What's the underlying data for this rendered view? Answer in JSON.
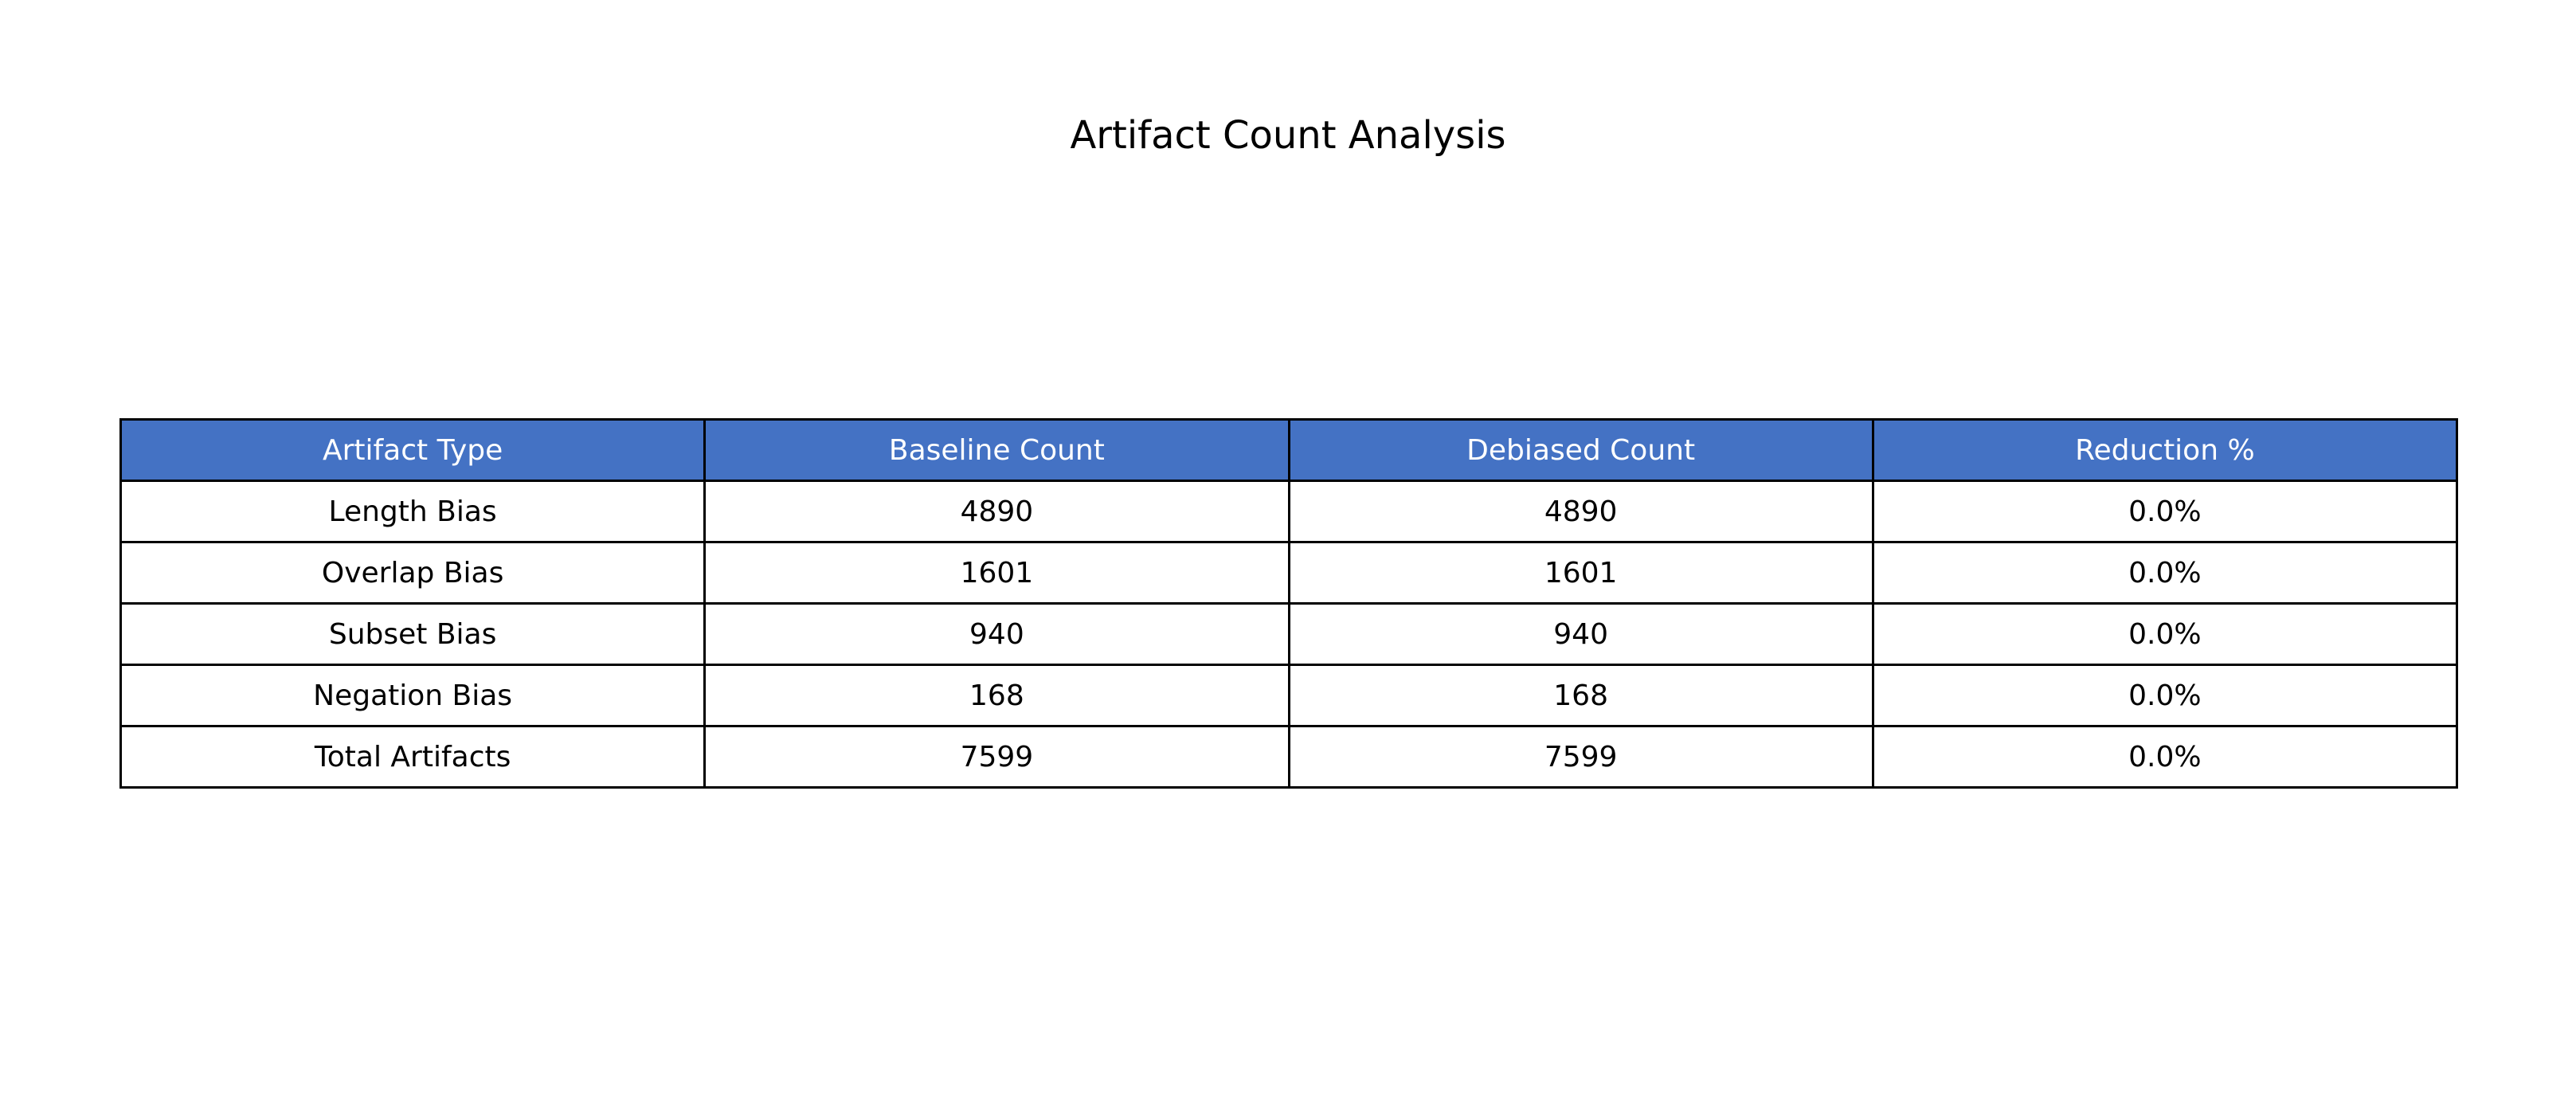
{
  "chart_data": {
    "type": "table",
    "title": "Artifact Count Analysis",
    "header_color": "#4472C4",
    "columns": [
      "Artifact Type",
      "Baseline Count",
      "Debiased Count",
      "Reduction %"
    ],
    "rows": [
      [
        "Length Bias",
        "4890",
        "4890",
        "0.0%"
      ],
      [
        "Overlap Bias",
        "1601",
        "1601",
        "0.0%"
      ],
      [
        "Subset Bias",
        "940",
        "940",
        "0.0%"
      ],
      [
        "Negation Bias",
        "168",
        "168",
        "0.0%"
      ],
      [
        "Total Artifacts",
        "7599",
        "7599",
        "0.0%"
      ]
    ]
  }
}
